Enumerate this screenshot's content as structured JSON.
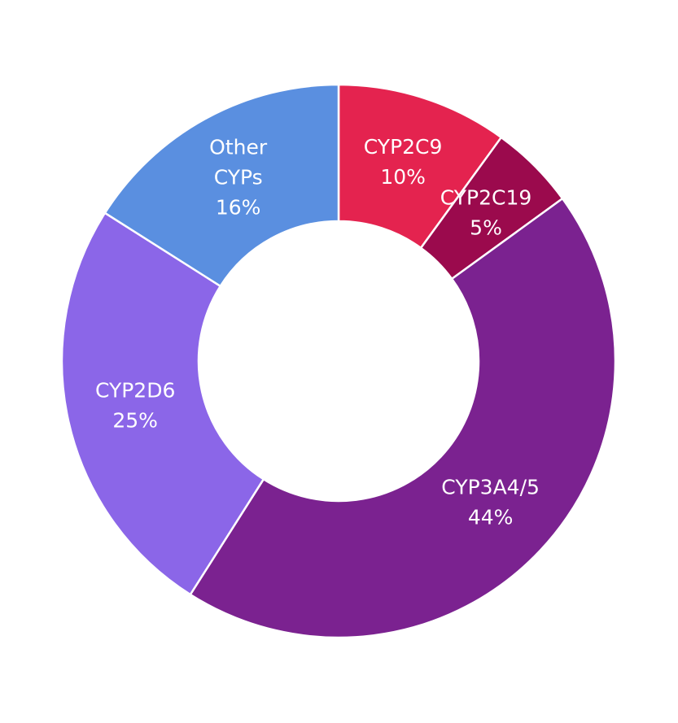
{
  "chart_data": {
    "type": "donut",
    "categories": [
      "CYP2C9",
      "CYP2C19",
      "CYP3A4/5",
      "CYP2D6",
      "Other CYPs"
    ],
    "values": [
      10,
      5,
      44,
      25,
      16
    ],
    "value_labels": [
      "10%",
      "5%",
      "44%",
      "25%",
      "16%"
    ],
    "colors": [
      "#e4234f",
      "#9b0a4d",
      "#7b2290",
      "#8b66e8",
      "#5a8fe0"
    ]
  }
}
